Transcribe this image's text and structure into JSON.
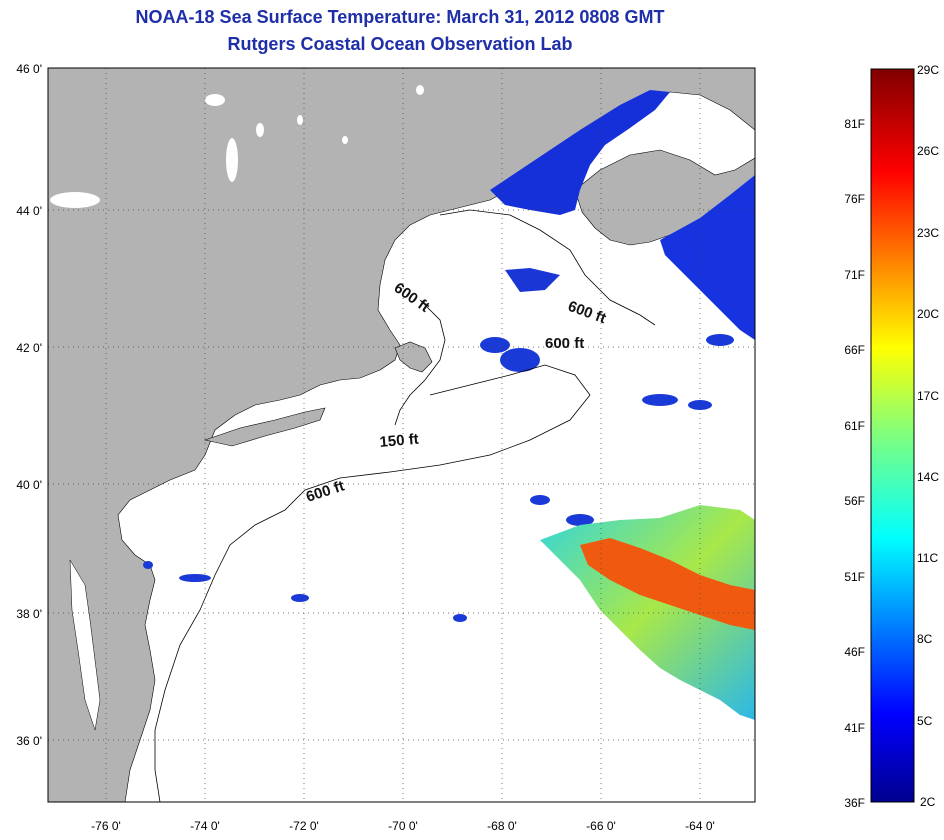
{
  "title": "NOAA-18 Sea Surface Temperature:  March 31, 2012 0808 GMT",
  "subtitle": "Rutgers Coastal Ocean Observation Lab",
  "map": {
    "lat_labels": [
      "46 0'",
      "44 0'",
      "42 0'",
      "40 0'",
      "38 0'",
      "36 0'"
    ],
    "lon_labels": [
      "-76 0'",
      "-74 0'",
      "-72 0'",
      "-70 0'",
      "-68 0'",
      "-66 0'",
      "-64 0'"
    ],
    "lat_range": [
      35,
      46
    ],
    "lon_range": [
      -77,
      -63
    ],
    "contour_labels": [
      "600 ft",
      "600 ft",
      "600 ft",
      "150 ft",
      "600 ft"
    ],
    "colors": {
      "land": "#b3b3b3",
      "ocean_no_data": "#ffffff",
      "cold_water": "#1530d8",
      "warm_water": "#f05a10"
    }
  },
  "colorbar": {
    "celsius_labels": [
      "29C",
      "26C",
      "23C",
      "20C",
      "17C",
      "14C",
      "11C",
      "8C",
      "5C",
      "2C"
    ],
    "fahrenheit_labels": [
      "81F",
      "76F",
      "71F",
      "66F",
      "61F",
      "56F",
      "51F",
      "46F",
      "41F",
      "36F"
    ],
    "min_c": 2,
    "max_c": 29
  }
}
